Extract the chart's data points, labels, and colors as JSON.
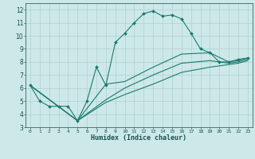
{
  "xlabel": "Humidex (Indice chaleur)",
  "ylabel": "",
  "background_color": "#cde8e8",
  "grid_color": "#b0d0d0",
  "line_color": "#1a7a6e",
  "xlim": [
    -0.5,
    23.5
  ],
  "ylim": [
    3,
    12.5
  ],
  "xticks": [
    0,
    1,
    2,
    3,
    4,
    5,
    6,
    7,
    8,
    9,
    10,
    11,
    12,
    13,
    14,
    15,
    16,
    17,
    18,
    19,
    20,
    21,
    22,
    23
  ],
  "yticks": [
    3,
    4,
    5,
    6,
    7,
    8,
    9,
    10,
    11,
    12
  ],
  "lines": [
    {
      "x": [
        0,
        1,
        2,
        3,
        4,
        5,
        6,
        7,
        8,
        9,
        10,
        11,
        12,
        13,
        14,
        15,
        16,
        17,
        18,
        19,
        20,
        21,
        22,
        23
      ],
      "y": [
        6.2,
        5.0,
        4.6,
        4.6,
        4.6,
        3.5,
        5.0,
        7.6,
        6.2,
        9.5,
        10.2,
        11.0,
        11.7,
        11.9,
        11.5,
        11.6,
        11.3,
        10.2,
        9.0,
        8.7,
        8.0,
        8.0,
        8.2,
        8.3
      ],
      "marker": true
    },
    {
      "x": [
        0,
        5,
        8,
        10,
        13,
        16,
        19,
        21,
        22,
        23
      ],
      "y": [
        6.2,
        3.5,
        6.3,
        6.5,
        7.6,
        8.6,
        8.7,
        8.0,
        8.1,
        8.3
      ],
      "marker": false
    },
    {
      "x": [
        0,
        5,
        8,
        10,
        13,
        16,
        19,
        21,
        22,
        23
      ],
      "y": [
        6.2,
        3.5,
        5.1,
        6.0,
        7.0,
        7.9,
        8.1,
        7.9,
        8.0,
        8.2
      ],
      "marker": false
    },
    {
      "x": [
        0,
        5,
        8,
        10,
        13,
        16,
        19,
        21,
        22,
        23
      ],
      "y": [
        6.2,
        3.5,
        4.9,
        5.5,
        6.3,
        7.2,
        7.6,
        7.8,
        7.9,
        8.1
      ],
      "marker": false
    }
  ]
}
